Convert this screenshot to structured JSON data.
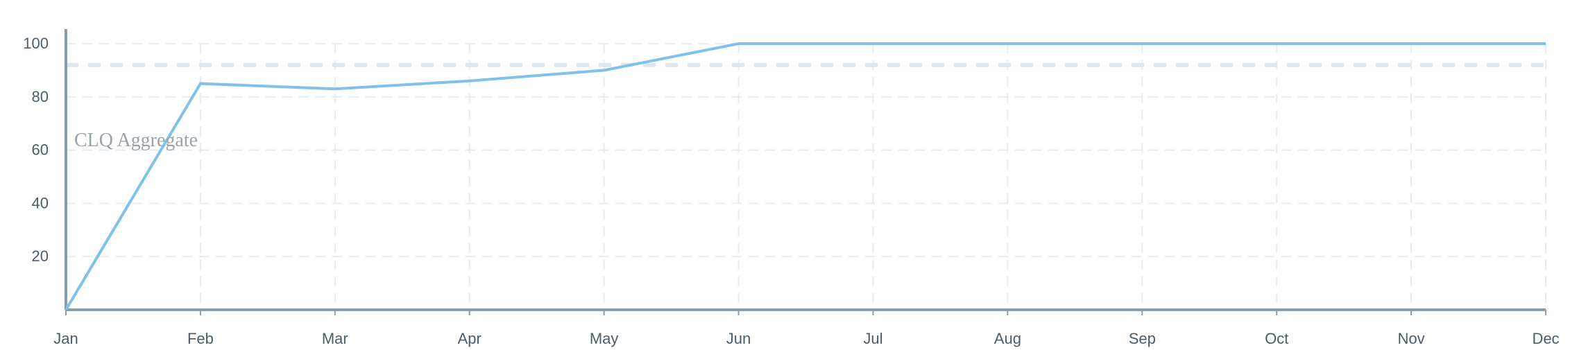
{
  "chart_data": {
    "type": "line",
    "categories": [
      "Jan",
      "Feb",
      "Mar",
      "Apr",
      "May",
      "Jun",
      "Jul",
      "Aug",
      "Sep",
      "Oct",
      "Nov",
      "Dec"
    ],
    "series": [
      {
        "name": "CLQ Aggregate",
        "values": [
          0,
          85,
          83,
          86,
          90,
          100,
          100,
          100,
          100,
          100,
          100,
          100
        ]
      }
    ],
    "reference_line": {
      "value": 92
    },
    "xlabel": "",
    "ylabel": "",
    "yticks": [
      "20",
      "40",
      "60",
      "80",
      "100"
    ],
    "ylim": [
      0,
      100
    ],
    "grid": true,
    "legend_position": "inline-left",
    "colors": {
      "series": "#7fc1ea",
      "axis": "#8b9bab",
      "grid": "#e7ebef",
      "target": "#dce5ec",
      "label": "#9aa3aa"
    }
  }
}
